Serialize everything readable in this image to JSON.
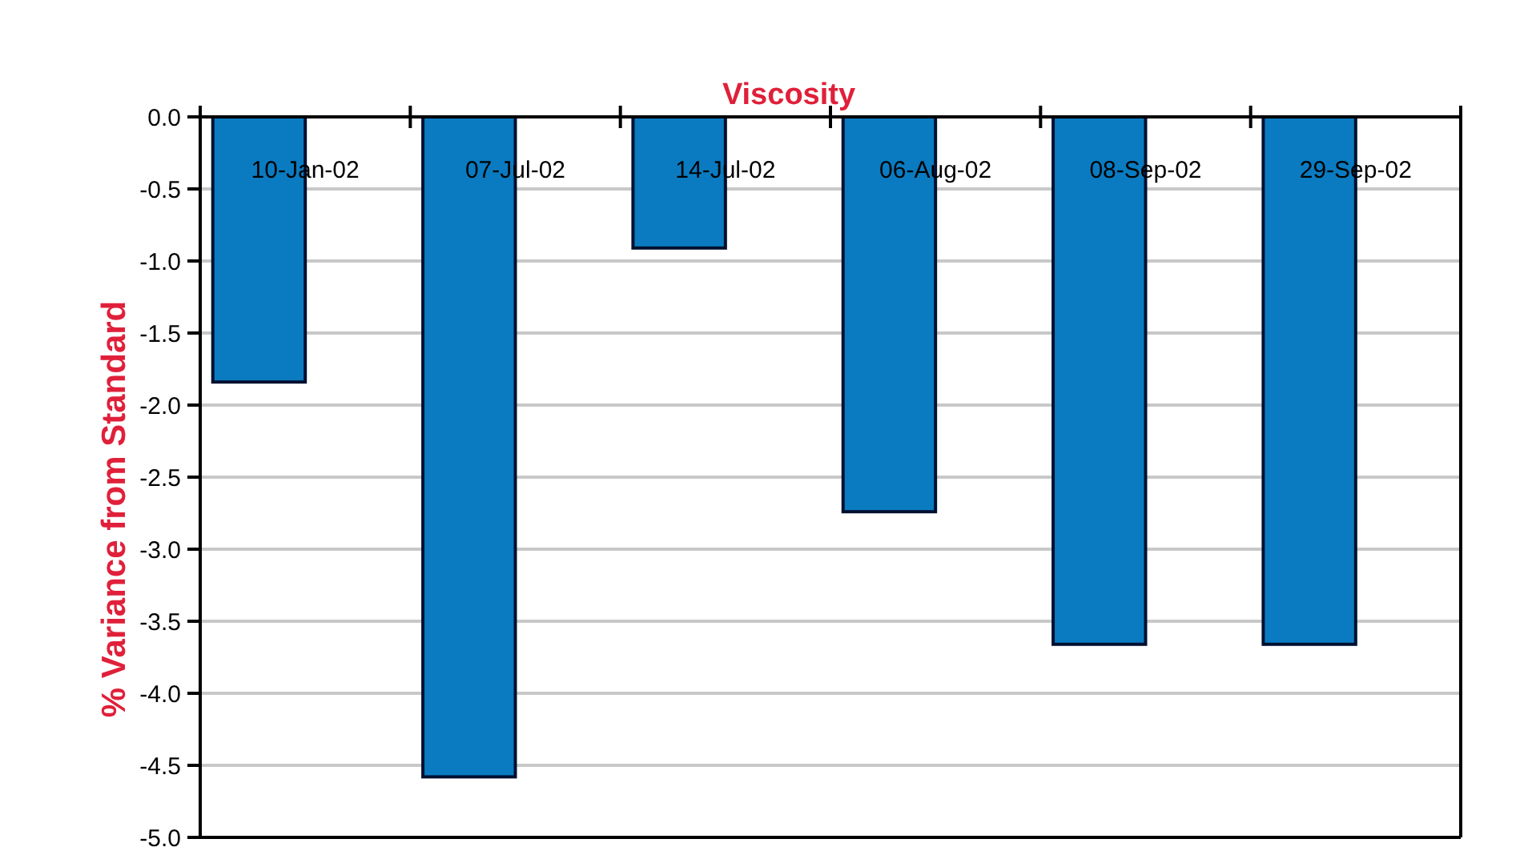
{
  "chart_data": {
    "type": "bar",
    "title": "Viscosity",
    "ylabel": "% Variance from Standard",
    "categories": [
      "10-Jan-02",
      "07-Jul-02",
      "14-Jul-02",
      "06-Aug-02",
      "08-Sep-02",
      "29-Sep-02"
    ],
    "values": [
      -1.84,
      -4.58,
      -0.91,
      -2.74,
      -3.66,
      -3.66
    ],
    "color": "#0a7bc1",
    "ylim": [
      -5,
      0
    ],
    "yticks": [
      {
        "value": 0,
        "label": "0.0"
      },
      {
        "value": -0.5,
        "label": "-0.5"
      },
      {
        "value": -1,
        "label": "-1.0"
      },
      {
        "value": -1.5,
        "label": "-1.5"
      },
      {
        "value": -2,
        "label": "-2.0"
      },
      {
        "value": -2.5,
        "label": "-2.5"
      },
      {
        "value": -3,
        "label": "-3.0"
      },
      {
        "value": -3.5,
        "label": "-3.5"
      },
      {
        "value": -4,
        "label": "-4.0"
      },
      {
        "value": -4.5,
        "label": "-4.5"
      },
      {
        "value": -5,
        "label": "-5.0"
      }
    ],
    "grid": "y"
  }
}
